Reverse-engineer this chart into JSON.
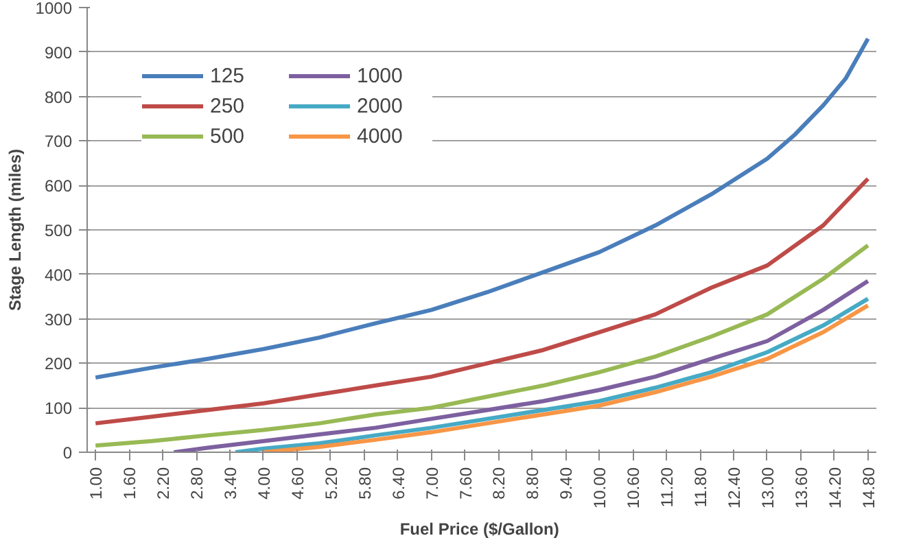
{
  "chart_data": {
    "type": "line",
    "xlabel": "Fuel Price  ($/Gallon)",
    "ylabel": "Stage Length (miles)",
    "xlim": [
      0.85,
      14.95
    ],
    "ylim": [
      0,
      1000
    ],
    "xticks": [
      {
        "value": 1,
        "label": "1.00"
      },
      {
        "value": 1.6,
        "label": "1.60"
      },
      {
        "value": 2.2,
        "label": "2.20"
      },
      {
        "value": 2.8,
        "label": "2.80"
      },
      {
        "value": 3.4,
        "label": "3.40"
      },
      {
        "value": 4,
        "label": "4.00"
      },
      {
        "value": 4.6,
        "label": "4.60"
      },
      {
        "value": 5.2,
        "label": "5.20"
      },
      {
        "value": 5.8,
        "label": "5.80"
      },
      {
        "value": 6.4,
        "label": "6.40"
      },
      {
        "value": 7,
        "label": "7.00"
      },
      {
        "value": 7.6,
        "label": "7.60"
      },
      {
        "value": 8.2,
        "label": "8.20"
      },
      {
        "value": 8.8,
        "label": "8.80"
      },
      {
        "value": 9.4,
        "label": "9.40"
      },
      {
        "value": 10,
        "label": "10.00"
      },
      {
        "value": 10.6,
        "label": "10.60"
      },
      {
        "value": 11.2,
        "label": "11.20"
      },
      {
        "value": 11.8,
        "label": "11.80"
      },
      {
        "value": 12.4,
        "label": "12.40"
      },
      {
        "value": 13,
        "label": "13.00"
      },
      {
        "value": 13.6,
        "label": "13.60"
      },
      {
        "value": 14.2,
        "label": "14.20"
      },
      {
        "value": 14.8,
        "label": "14.80"
      }
    ],
    "yticks": [
      0,
      100,
      200,
      300,
      400,
      500,
      600,
      700,
      800,
      900,
      1000
    ],
    "grid": "y",
    "legend": "top left",
    "marker": "none",
    "line_style": "solid",
    "series": [
      {
        "name": "125",
        "color": "#4a7ebb",
        "x": [
          1,
          2,
          3,
          4,
          5,
          6,
          7,
          8,
          9,
          10,
          11,
          12,
          13,
          13.5,
          14,
          14.4,
          14.8
        ],
        "values": [
          168,
          190,
          210,
          232,
          258,
          290,
          320,
          360,
          405,
          450,
          510,
          580,
          660,
          715,
          780,
          840,
          930
        ]
      },
      {
        "name": "250",
        "color": "#be4b48",
        "x": [
          1,
          2,
          3,
          4,
          5,
          6,
          7,
          8,
          9,
          10,
          11,
          12,
          13,
          14,
          14.8
        ],
        "values": [
          65,
          80,
          95,
          110,
          130,
          150,
          170,
          200,
          230,
          270,
          310,
          370,
          420,
          510,
          615
        ]
      },
      {
        "name": "500",
        "color": "#98b954",
        "x": [
          1,
          2,
          3,
          4,
          5,
          6,
          7,
          8,
          9,
          10,
          11,
          12,
          13,
          14,
          14.8
        ],
        "values": [
          15,
          25,
          38,
          50,
          65,
          85,
          100,
          125,
          150,
          180,
          215,
          260,
          310,
          390,
          465
        ]
      },
      {
        "name": "1000",
        "color": "#7d60a0",
        "x": [
          2.4,
          3,
          4,
          5,
          6,
          7,
          8,
          9,
          10,
          11,
          12,
          13,
          14,
          14.8
        ],
        "values": [
          0,
          10,
          25,
          40,
          55,
          75,
          95,
          115,
          140,
          170,
          210,
          250,
          320,
          385
        ]
      },
      {
        "name": "2000",
        "color": "#46aac5",
        "x": [
          3.5,
          4,
          5,
          6,
          7,
          8,
          9,
          10,
          11,
          12,
          13,
          14,
          14.8
        ],
        "values": [
          0,
          8,
          20,
          38,
          55,
          75,
          95,
          115,
          145,
          180,
          225,
          285,
          345
        ]
      },
      {
        "name": "4000",
        "color": "#f79646",
        "x": [
          4,
          5,
          6,
          7,
          8,
          9,
          10,
          11,
          12,
          13,
          14,
          14.8
        ],
        "values": [
          0,
          12,
          28,
          45,
          65,
          85,
          105,
          135,
          170,
          210,
          270,
          330
        ]
      }
    ]
  }
}
